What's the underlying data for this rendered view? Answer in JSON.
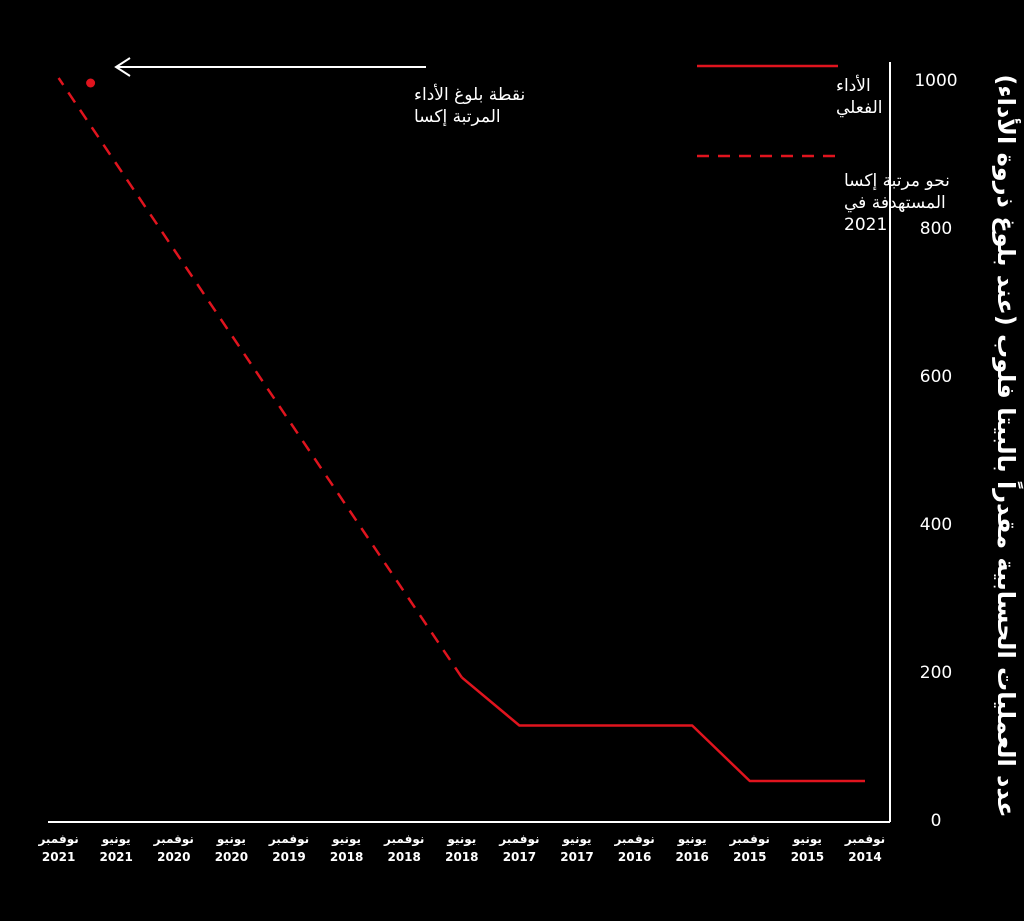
{
  "chart_data": {
    "type": "line",
    "ylabel": "عدد العمليات الحسابية مقدراً بالبيتا فلوب (عند بلوغ ذروة الأداء)",
    "xlabel": "",
    "ylim": [
      0,
      1000
    ],
    "yticks": [
      0,
      200,
      400,
      600,
      800,
      1000
    ],
    "x_ticks": [
      {
        "month": "نوفمبر",
        "year": "2014"
      },
      {
        "month": "يونيو",
        "year": "2015"
      },
      {
        "month": "نوفمبر",
        "year": "2015"
      },
      {
        "month": "يونيو",
        "year": "2016"
      },
      {
        "month": "نوفمبر",
        "year": "2016"
      },
      {
        "month": "يونيو",
        "year": "2017"
      },
      {
        "month": "نوفمبر",
        "year": "2017"
      },
      {
        "month": "يونيو",
        "year": "2018"
      },
      {
        "month": "نوفمبر",
        "year": "2018"
      },
      {
        "month": "يونيو",
        "year": "2018"
      },
      {
        "month": "نوفمبر",
        "year": "2019"
      },
      {
        "month": "يونيو",
        "year": "2020"
      },
      {
        "month": "نوفمبر",
        "year": "2020"
      },
      {
        "month": "يونيو",
        "year": "2021"
      },
      {
        "month": "نوفمبر",
        "year": "2021"
      }
    ],
    "series": [
      {
        "name": "الأداء الفعلي",
        "style": "solid",
        "points": [
          {
            "x": "نوفمبر 2014",
            "y": 50
          },
          {
            "x": "يونيو 2015",
            "y": 50
          },
          {
            "x": "نوفمبر 2015",
            "y": 50
          },
          {
            "x": "يونيو 2016",
            "y": 125
          },
          {
            "x": "نوفمبر 2016",
            "y": 125
          },
          {
            "x": "يونيو 2017",
            "y": 125
          },
          {
            "x": "نوفمبر 2017",
            "y": 125
          },
          {
            "x": "يونيو 2018",
            "y": 190
          }
        ]
      },
      {
        "name": "نحو مرتبة إكسا المستهدفة في 2021",
        "style": "dashed",
        "points": [
          {
            "x": "يونيو 2018",
            "y": 190
          },
          {
            "x": "نوفمبر 2021",
            "y": 1000
          }
        ]
      }
    ],
    "annotation": {
      "text": "نقطة بلوغ الأداء المرتبة إكسا",
      "x": "نوفمبر 2021",
      "y": 1000
    },
    "legend_position": "top-right",
    "colors": {
      "line": "#e0141e",
      "axis": "#ffffff",
      "background": "#000000"
    }
  }
}
